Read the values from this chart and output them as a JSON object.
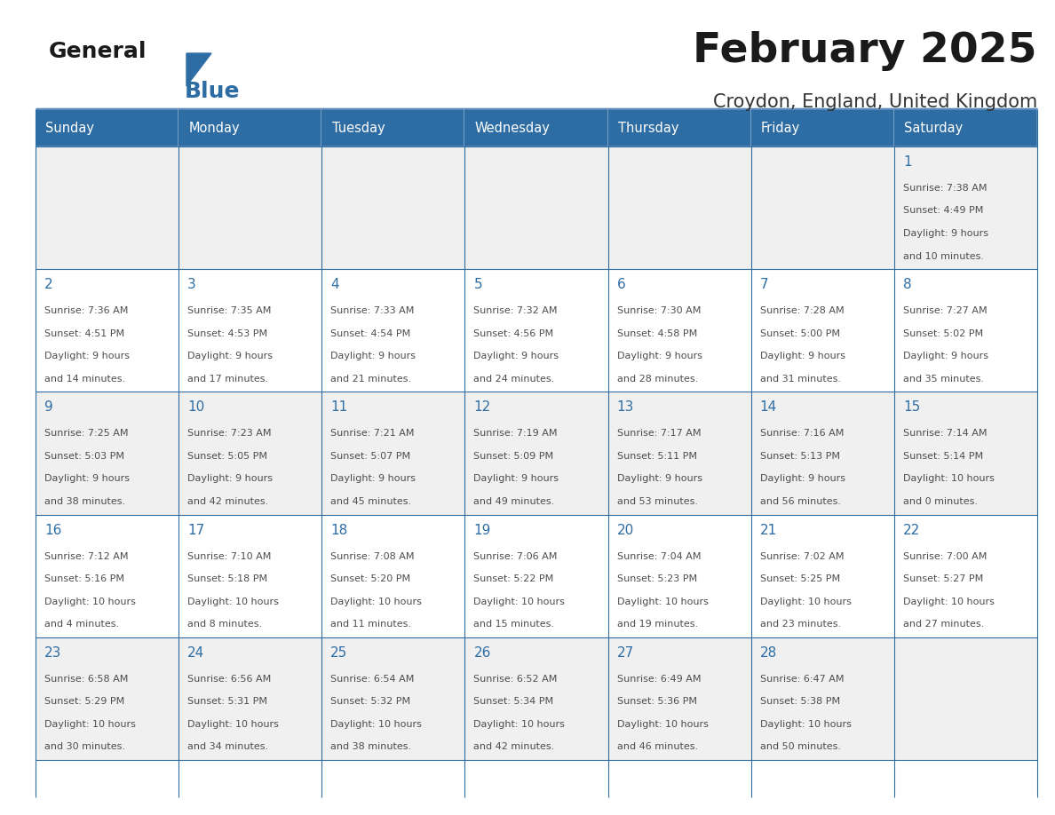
{
  "title": "February 2025",
  "subtitle": "Croydon, England, United Kingdom",
  "header_bg": "#2E6DA4",
  "header_text_color": "#FFFFFF",
  "border_color": "#2E6DA4",
  "day_number_color": "#2E6DA4",
  "text_color": "#4D4D4D",
  "days_of_week": [
    "Sunday",
    "Monday",
    "Tuesday",
    "Wednesday",
    "Thursday",
    "Friday",
    "Saturday"
  ],
  "row_colors": [
    "#F0F0F0",
    "#FFFFFF",
    "#F0F0F0",
    "#FFFFFF",
    "#F0F0F0"
  ],
  "calendar": [
    [
      null,
      null,
      null,
      null,
      null,
      null,
      {
        "day": 1,
        "sunrise": "7:38 AM",
        "sunset": "4:49 PM",
        "daylight1": "9 hours",
        "daylight2": "and 10 minutes."
      }
    ],
    [
      {
        "day": 2,
        "sunrise": "7:36 AM",
        "sunset": "4:51 PM",
        "daylight1": "9 hours",
        "daylight2": "and 14 minutes."
      },
      {
        "day": 3,
        "sunrise": "7:35 AM",
        "sunset": "4:53 PM",
        "daylight1": "9 hours",
        "daylight2": "and 17 minutes."
      },
      {
        "day": 4,
        "sunrise": "7:33 AM",
        "sunset": "4:54 PM",
        "daylight1": "9 hours",
        "daylight2": "and 21 minutes."
      },
      {
        "day": 5,
        "sunrise": "7:32 AM",
        "sunset": "4:56 PM",
        "daylight1": "9 hours",
        "daylight2": "and 24 minutes."
      },
      {
        "day": 6,
        "sunrise": "7:30 AM",
        "sunset": "4:58 PM",
        "daylight1": "9 hours",
        "daylight2": "and 28 minutes."
      },
      {
        "day": 7,
        "sunrise": "7:28 AM",
        "sunset": "5:00 PM",
        "daylight1": "9 hours",
        "daylight2": "and 31 minutes."
      },
      {
        "day": 8,
        "sunrise": "7:27 AM",
        "sunset": "5:02 PM",
        "daylight1": "9 hours",
        "daylight2": "and 35 minutes."
      }
    ],
    [
      {
        "day": 9,
        "sunrise": "7:25 AM",
        "sunset": "5:03 PM",
        "daylight1": "9 hours",
        "daylight2": "and 38 minutes."
      },
      {
        "day": 10,
        "sunrise": "7:23 AM",
        "sunset": "5:05 PM",
        "daylight1": "9 hours",
        "daylight2": "and 42 minutes."
      },
      {
        "day": 11,
        "sunrise": "7:21 AM",
        "sunset": "5:07 PM",
        "daylight1": "9 hours",
        "daylight2": "and 45 minutes."
      },
      {
        "day": 12,
        "sunrise": "7:19 AM",
        "sunset": "5:09 PM",
        "daylight1": "9 hours",
        "daylight2": "and 49 minutes."
      },
      {
        "day": 13,
        "sunrise": "7:17 AM",
        "sunset": "5:11 PM",
        "daylight1": "9 hours",
        "daylight2": "and 53 minutes."
      },
      {
        "day": 14,
        "sunrise": "7:16 AM",
        "sunset": "5:13 PM",
        "daylight1": "9 hours",
        "daylight2": "and 56 minutes."
      },
      {
        "day": 15,
        "sunrise": "7:14 AM",
        "sunset": "5:14 PM",
        "daylight1": "10 hours",
        "daylight2": "and 0 minutes."
      }
    ],
    [
      {
        "day": 16,
        "sunrise": "7:12 AM",
        "sunset": "5:16 PM",
        "daylight1": "10 hours",
        "daylight2": "and 4 minutes."
      },
      {
        "day": 17,
        "sunrise": "7:10 AM",
        "sunset": "5:18 PM",
        "daylight1": "10 hours",
        "daylight2": "and 8 minutes."
      },
      {
        "day": 18,
        "sunrise": "7:08 AM",
        "sunset": "5:20 PM",
        "daylight1": "10 hours",
        "daylight2": "and 11 minutes."
      },
      {
        "day": 19,
        "sunrise": "7:06 AM",
        "sunset": "5:22 PM",
        "daylight1": "10 hours",
        "daylight2": "and 15 minutes."
      },
      {
        "day": 20,
        "sunrise": "7:04 AM",
        "sunset": "5:23 PM",
        "daylight1": "10 hours",
        "daylight2": "and 19 minutes."
      },
      {
        "day": 21,
        "sunrise": "7:02 AM",
        "sunset": "5:25 PM",
        "daylight1": "10 hours",
        "daylight2": "and 23 minutes."
      },
      {
        "day": 22,
        "sunrise": "7:00 AM",
        "sunset": "5:27 PM",
        "daylight1": "10 hours",
        "daylight2": "and 27 minutes."
      }
    ],
    [
      {
        "day": 23,
        "sunrise": "6:58 AM",
        "sunset": "5:29 PM",
        "daylight1": "10 hours",
        "daylight2": "and 30 minutes."
      },
      {
        "day": 24,
        "sunrise": "6:56 AM",
        "sunset": "5:31 PM",
        "daylight1": "10 hours",
        "daylight2": "and 34 minutes."
      },
      {
        "day": 25,
        "sunrise": "6:54 AM",
        "sunset": "5:32 PM",
        "daylight1": "10 hours",
        "daylight2": "and 38 minutes."
      },
      {
        "day": 26,
        "sunrise": "6:52 AM",
        "sunset": "5:34 PM",
        "daylight1": "10 hours",
        "daylight2": "and 42 minutes."
      },
      {
        "day": 27,
        "sunrise": "6:49 AM",
        "sunset": "5:36 PM",
        "daylight1": "10 hours",
        "daylight2": "and 46 minutes."
      },
      {
        "day": 28,
        "sunrise": "6:47 AM",
        "sunset": "5:38 PM",
        "daylight1": "10 hours",
        "daylight2": "and 50 minutes."
      },
      null
    ]
  ]
}
